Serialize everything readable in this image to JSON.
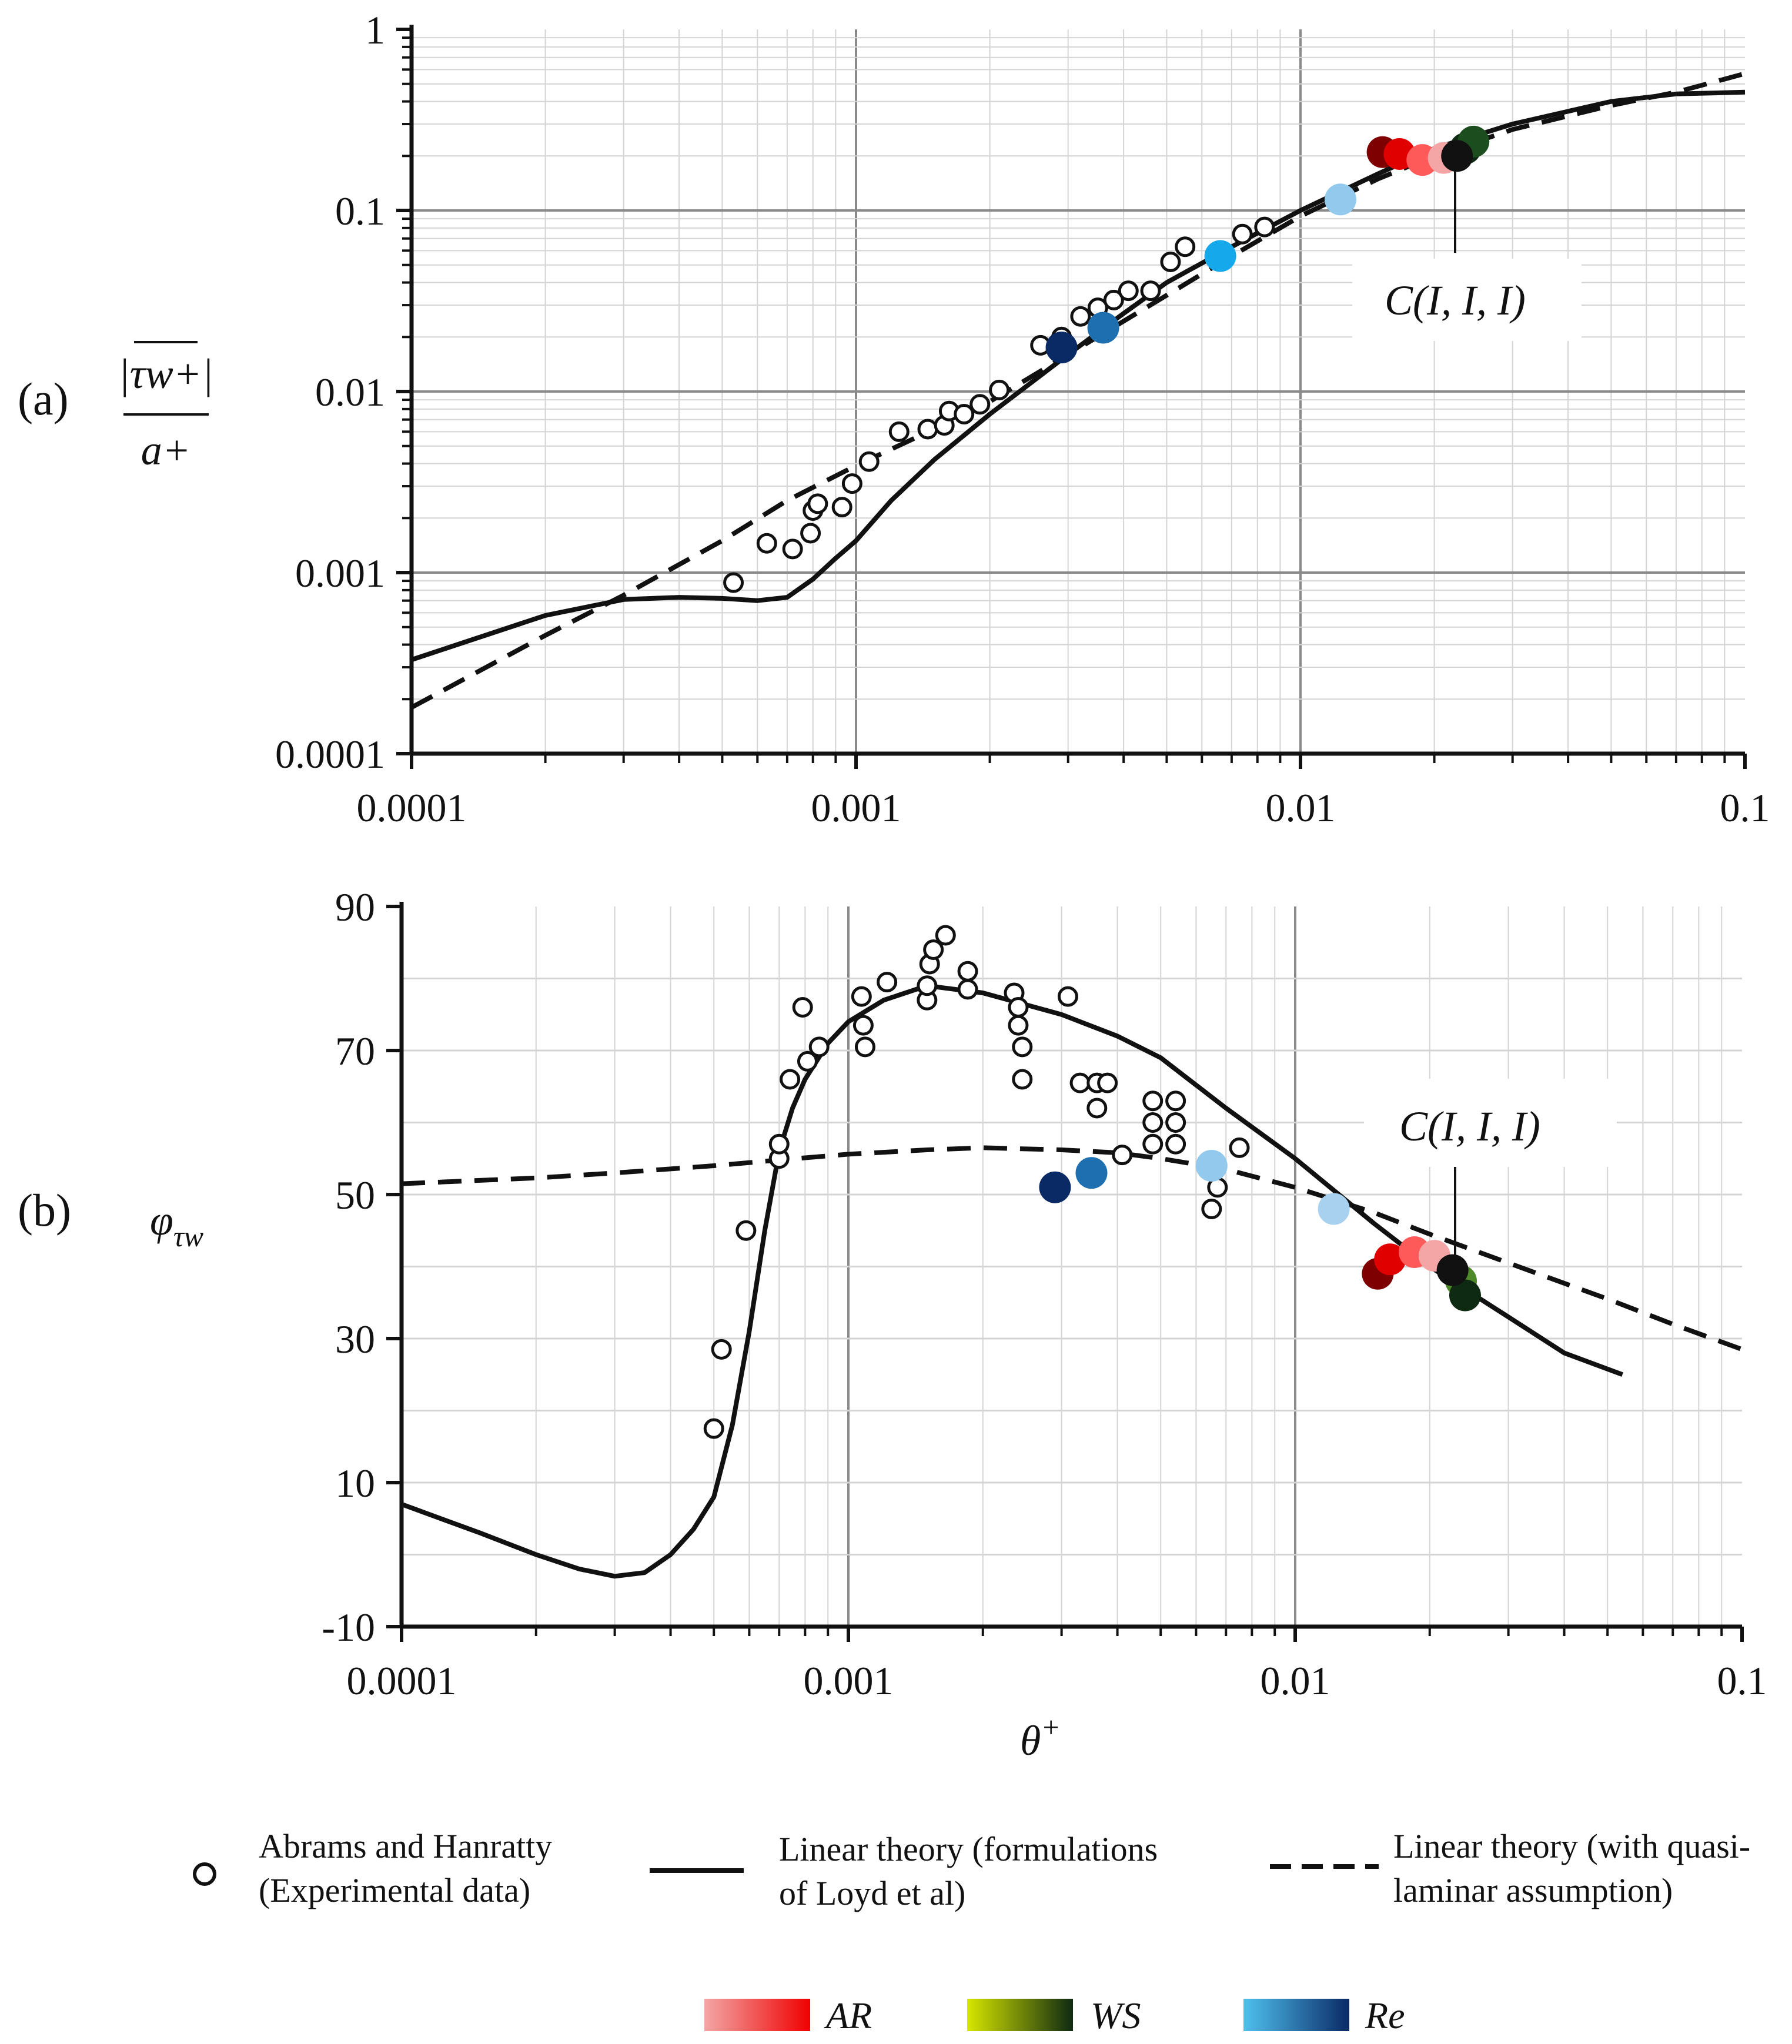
{
  "colors": {
    "ar_light": "#f4a6a6",
    "ar_dark": "#f00000",
    "ws_light": "#d7e600",
    "ws_dark": "#0f2a12",
    "re_light": "#4fc1ef",
    "re_dark": "#0a2a66",
    "axis": "#111111",
    "grid_major": "#8a8a8a",
    "grid_minor": "#d4d4d4"
  },
  "chart_data": [
    {
      "type": "line",
      "panel_label": "(a)",
      "ylabel": "|τ̂w+| / a+",
      "ylabel_num": "|τw+|",
      "ylabel_den": "a+",
      "xscale": "log",
      "yscale": "log",
      "xlim": [
        0.0001,
        0.1
      ],
      "ylim": [
        0.0001,
        1
      ],
      "x_ticks": [
        0.0001,
        0.001,
        0.01,
        0.1
      ],
      "x_tick_labels": [
        "0.0001",
        "0.001",
        "0.01",
        "0.1"
      ],
      "y_ticks": [
        0.0001,
        0.001,
        0.01,
        0.1,
        1
      ],
      "y_tick_labels": [
        "0.0001",
        "0.001",
        "0.01",
        "0.1",
        "1"
      ],
      "grid": true,
      "annotation": {
        "text": "C(I, I, I)",
        "x": 0.0225,
        "y": 0.2
      },
      "series": [
        {
          "name": "Linear theory (formulations of Loyd et al)",
          "style": "solid",
          "x": [
            0.0001,
            0.0002,
            0.0003,
            0.0004,
            0.0005,
            0.0006,
            0.0007,
            0.0008,
            0.0009,
            0.001,
            0.0012,
            0.0015,
            0.002,
            0.003,
            0.004,
            0.005,
            0.007,
            0.01,
            0.015,
            0.02,
            0.03,
            0.05,
            0.07,
            0.1
          ],
          "y": [
            0.00033,
            0.00058,
            0.00071,
            0.00073,
            0.00072,
            0.0007,
            0.00073,
            0.00092,
            0.0012,
            0.0015,
            0.0025,
            0.0042,
            0.0075,
            0.016,
            0.027,
            0.04,
            0.063,
            0.1,
            0.16,
            0.22,
            0.3,
            0.4,
            0.44,
            0.45
          ]
        },
        {
          "name": "Linear theory (with quasi-laminar assumption)",
          "style": "dashed",
          "x": [
            0.0001,
            0.0002,
            0.0003,
            0.0005,
            0.0007,
            0.001,
            0.0015,
            0.002,
            0.003,
            0.005,
            0.007,
            0.01,
            0.015,
            0.02,
            0.03,
            0.05,
            0.07,
            0.1
          ],
          "y": [
            0.00018,
            0.00045,
            0.00075,
            0.0015,
            0.0025,
            0.0039,
            0.0062,
            0.0088,
            0.016,
            0.034,
            0.056,
            0.093,
            0.15,
            0.2,
            0.28,
            0.38,
            0.45,
            0.57
          ]
        },
        {
          "name": "Abrams and Hanratty (Experimental data)",
          "style": "markers",
          "x": [
            0.00053,
            0.00063,
            0.00072,
            0.00079,
            0.0008,
            0.00082,
            0.00093,
            0.00098,
            0.00107,
            0.00125,
            0.00145,
            0.00158,
            0.00162,
            0.00175,
            0.0019,
            0.0021,
            0.0026,
            0.0029,
            0.0032,
            0.0035,
            0.0038,
            0.0041,
            0.0046,
            0.0051,
            0.0055,
            0.0074,
            0.0083
          ],
          "y": [
            0.00088,
            0.00145,
            0.00135,
            0.00165,
            0.0022,
            0.0024,
            0.0023,
            0.0031,
            0.0041,
            0.006,
            0.0062,
            0.0065,
            0.0078,
            0.0075,
            0.0085,
            0.0102,
            0.018,
            0.02,
            0.026,
            0.029,
            0.032,
            0.036,
            0.036,
            0.052,
            0.063,
            0.074,
            0.081
          ]
        },
        {
          "name": "AR",
          "style": "colored-markers",
          "x": [
            0.0153,
            0.0167,
            0.0188,
            0.021
          ],
          "y": [
            0.21,
            0.205,
            0.19,
            0.195
          ],
          "colors": [
            "#7e0000",
            "#e00000",
            "#ff5a5a",
            "#f4a6a6"
          ]
        },
        {
          "name": "WS",
          "style": "colored-markers",
          "x": [
            0.0235,
            0.0245
          ],
          "y": [
            0.22,
            0.24
          ],
          "colors": [
            "#0f2a12",
            "#1c4d1f"
          ]
        },
        {
          "name": "Re",
          "style": "colored-markers",
          "x": [
            0.0029,
            0.0036,
            0.0066,
            0.0123
          ],
          "y": [
            0.0175,
            0.0225,
            0.056,
            0.115
          ],
          "colors": [
            "#0a2a66",
            "#1d6fb0",
            "#15a8ea",
            "#92c9ec"
          ]
        },
        {
          "name": "C(I, I, I)",
          "style": "colored-markers",
          "x": [
            0.0225
          ],
          "y": [
            0.2
          ],
          "colors": [
            "#111111"
          ]
        }
      ]
    },
    {
      "type": "line",
      "panel_label": "(b)",
      "ylabel": "φτw",
      "ylabel_main": "φ",
      "ylabel_sub": "τw",
      "xlabel": "θ+",
      "xlabel_main": "θ",
      "xlabel_sup": "+",
      "xscale": "log",
      "yscale": "linear",
      "xlim": [
        0.0001,
        0.1
      ],
      "ylim": [
        -10,
        90
      ],
      "x_ticks": [
        0.0001,
        0.001,
        0.01,
        0.1
      ],
      "x_tick_labels": [
        "0.0001",
        "0.001",
        "0.01",
        "0.1"
      ],
      "y_ticks": [
        -10,
        10,
        30,
        50,
        70,
        90
      ],
      "y_tick_labels": [
        "-10",
        "10",
        "30",
        "50",
        "70",
        "90"
      ],
      "grid": true,
      "annotation": {
        "text": "C(I, I, I)",
        "x": 0.0225,
        "y": 39.5
      },
      "series": [
        {
          "name": "Linear theory (formulations of Loyd et al)",
          "style": "solid",
          "x": [
            0.0001,
            0.00015,
            0.0002,
            0.00025,
            0.0003,
            0.00035,
            0.0004,
            0.00045,
            0.0005,
            0.00055,
            0.0006,
            0.00065,
            0.0007,
            0.00075,
            0.0008,
            0.0009,
            0.001,
            0.0012,
            0.0015,
            0.002,
            0.003,
            0.004,
            0.005,
            0.007,
            0.01,
            0.015,
            0.02,
            0.03,
            0.04,
            0.054
          ],
          "y": [
            7,
            3,
            0,
            -2,
            -3,
            -2.5,
            0,
            3.5,
            8,
            18,
            31,
            45,
            56,
            62,
            66,
            71,
            74,
            77,
            79,
            78,
            75,
            72,
            69,
            62,
            55,
            46,
            40,
            33,
            28,
            25
          ]
        },
        {
          "name": "Linear theory (with quasi-laminar assumption)",
          "style": "dashed",
          "x": [
            0.0001,
            0.0002,
            0.0003,
            0.0005,
            0.0007,
            0.001,
            0.0015,
            0.002,
            0.003,
            0.004,
            0.005,
            0.007,
            0.01,
            0.015,
            0.02,
            0.03,
            0.05,
            0.07,
            0.1
          ],
          "y": [
            51.5,
            52.3,
            53,
            54,
            54.8,
            55.6,
            56.2,
            56.5,
            56.2,
            55.8,
            55,
            53.5,
            51,
            47.5,
            44.5,
            40.5,
            35.5,
            32,
            28.5
          ]
        },
        {
          "name": "Abrams and Hanratty (Experimental data)",
          "style": "markers",
          "x": [
            0.0005,
            0.00052,
            0.00059,
            0.0007,
            0.0007,
            0.00074,
            0.00079,
            0.00081,
            0.00086,
            0.00107,
            0.00108,
            0.00109,
            0.00122,
            0.0015,
            0.0015,
            0.00152,
            0.00155,
            0.00165,
            0.00185,
            0.00185,
            0.00235,
            0.0024,
            0.0024,
            0.00245,
            0.00245,
            0.0031,
            0.0033,
            0.0036,
            0.0036,
            0.0038,
            0.0041,
            0.0048,
            0.0048,
            0.0048,
            0.0054,
            0.0054,
            0.0054,
            0.0065,
            0.0067,
            0.0075
          ],
          "y": [
            17.5,
            28.5,
            45,
            55,
            57,
            66,
            76,
            68.5,
            70.5,
            77.5,
            73.5,
            70.5,
            79.5,
            77,
            79,
            82,
            84,
            86,
            81,
            78.5,
            78,
            76,
            73.5,
            70.5,
            66,
            77.5,
            65.5,
            65.5,
            62,
            65.5,
            55.5,
            63,
            60,
            57,
            63,
            60,
            57,
            48,
            51,
            56.5
          ]
        },
        {
          "name": "AR",
          "style": "colored-markers",
          "x": [
            0.0153,
            0.0163,
            0.0185,
            0.0205
          ],
          "y": [
            39,
            41,
            42,
            41.5
          ],
          "colors": [
            "#7e0000",
            "#e00000",
            "#ff5a5a",
            "#f4a6a6"
          ]
        },
        {
          "name": "WS",
          "style": "colored-markers",
          "x": [
            0.0235,
            0.024
          ],
          "y": [
            38,
            36
          ],
          "colors": [
            "#4f8a2a",
            "#0f2a12"
          ]
        },
        {
          "name": "Re",
          "style": "colored-markers",
          "x": [
            0.0029,
            0.0035,
            0.0065,
            0.0122
          ],
          "y": [
            51,
            53,
            54,
            48
          ],
          "colors": [
            "#0a2a66",
            "#1d6fb0",
            "#92c9ec",
            "#a8d0ef"
          ]
        },
        {
          "name": "C(I, I, I)",
          "style": "colored-markers",
          "x": [
            0.0225
          ],
          "y": [
            39.5
          ],
          "colors": [
            "#111111"
          ]
        }
      ]
    }
  ],
  "legend": {
    "items": [
      {
        "symbol": "circle",
        "line1": "Abrams and Hanratty",
        "line2": "(Experimental data)"
      },
      {
        "symbol": "solid",
        "line1": "Linear theory (formulations",
        "line2": "of Loyd et al)"
      },
      {
        "symbol": "dashed",
        "line1": "Linear theory (with quasi-",
        "line2": "laminar assumption)"
      }
    ],
    "gradients": [
      {
        "label": "AR",
        "from": "#f4a6a6",
        "to": "#f00000"
      },
      {
        "label": "WS",
        "from": "#d7e600",
        "to": "#0f2a12"
      },
      {
        "label": "Re",
        "from": "#4fc1ef",
        "to": "#0a2a66"
      }
    ]
  }
}
